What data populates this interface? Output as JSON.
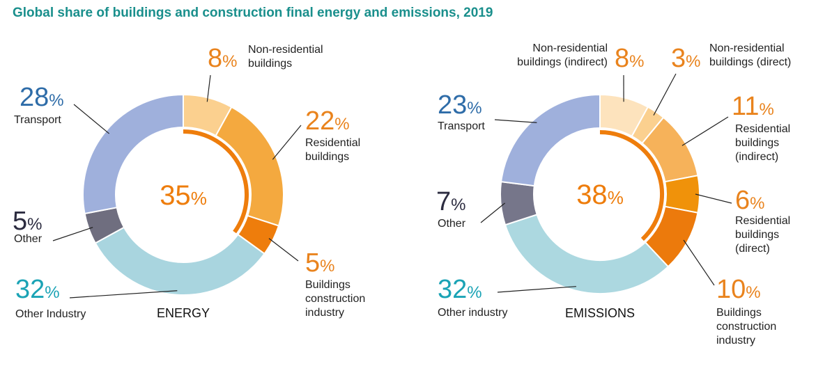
{
  "title": "Global share of buildings and construction final energy and emissions, 2019",
  "chart_data": [
    {
      "type": "pie",
      "label": "ENERGY",
      "categories": [
        "Non-residential buildings",
        "Residential buildings",
        "Buildings construction industry",
        "Other Industry",
        "Other",
        "Transport"
      ],
      "values": [
        8,
        22,
        5,
        32,
        5,
        28
      ],
      "value_labels": [
        "8%",
        "22%",
        "5%",
        "32%",
        "5%",
        "28%"
      ],
      "colors": [
        "#fbd08f",
        "#f4a93f",
        "#ee7d0c",
        "#a9d5df",
        "#6f6e7f",
        "#9fb0dc"
      ],
      "label_colors": [
        "#e9831d",
        "#e9831d",
        "#e9831d",
        "#1aa3b5",
        "#2c2c40",
        "#2e6ca8"
      ],
      "center_value": 35,
      "center_label": "35%",
      "center_color": "#ee7d0c"
    },
    {
      "type": "pie",
      "label": "EMISSIONS",
      "categories": [
        "Non-residential buildings (indirect)",
        "Non-residential buildings (direct)",
        "Residential buildings (indirect)",
        "Residential buildings (direct)",
        "Buildings construction industry",
        "Other industry",
        "Other",
        "Transport"
      ],
      "values": [
        8,
        3,
        11,
        6,
        10,
        32,
        7,
        23
      ],
      "value_labels": [
        "8%",
        "3%",
        "11%",
        "6%",
        "10%",
        "32%",
        "7%",
        "23%"
      ],
      "colors": [
        "#fde3bd",
        "#fbd08f",
        "#f6b25a",
        "#f0920a",
        "#ec7a0c",
        "#acd8e0",
        "#76768a",
        "#9fb0dc"
      ],
      "label_colors": [
        "#e9831d",
        "#e9831d",
        "#e9831d",
        "#e9831d",
        "#e9831d",
        "#1aa3b5",
        "#2c2c40",
        "#2e6ca8"
      ],
      "center_value": 38,
      "center_label": "38%",
      "center_color": "#ee7d0c"
    }
  ]
}
